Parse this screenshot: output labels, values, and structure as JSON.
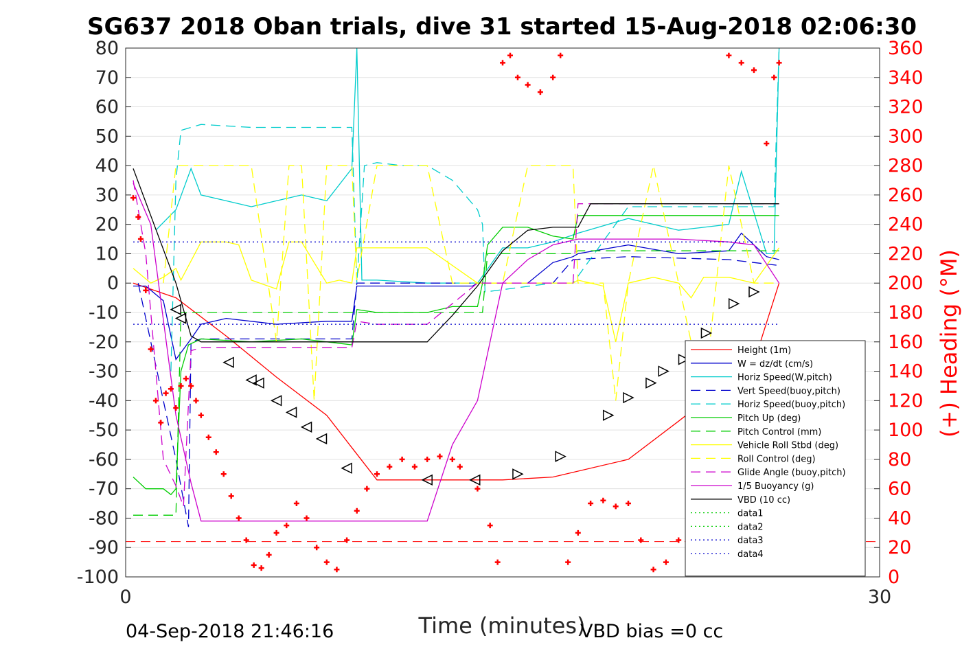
{
  "title": "SG637 2018 Oban trials, dive 31 started 15-Aug-2018 02:06:30",
  "footer": {
    "timestamp": "04-Sep-2018 21:46:16",
    "vbd_bias": "VBD bias =0 cc"
  },
  "chart_data": {
    "type": "line",
    "title": "SG637 2018 Oban trials, dive 31 started 15-Aug-2018 02:06:30",
    "xlabel": "Time (minutes)",
    "ylabel_left": "",
    "ylabel_right": "(+) Heading (°M)",
    "xlim": [
      0,
      30
    ],
    "ylim_left": [
      -100,
      80
    ],
    "ylim_right": [
      0,
      360
    ],
    "xticks": [
      "0",
      "30"
    ],
    "yticks_left": [
      "80",
      "70",
      "60",
      "50",
      "40",
      "30",
      "20",
      "10",
      "0",
      "-10",
      "-20",
      "-30",
      "-40",
      "-50",
      "-60",
      "-70",
      "-80",
      "-90",
      "-100"
    ],
    "yticks_right": [
      "360",
      "340",
      "320",
      "300",
      "280",
      "260",
      "240",
      "220",
      "200",
      "180",
      "160",
      "140",
      "120",
      "100",
      "80",
      "60",
      "40",
      "20",
      "0"
    ],
    "grid": true,
    "legend_position": "bottom-right",
    "series": [
      {
        "name": "Height (1m)",
        "color": "#ff0000",
        "style": "solid",
        "x": [
          0.3,
          2.0,
          4.0,
          6.0,
          8.0,
          9.0,
          10.0,
          13.0,
          15.0,
          17.0,
          20.0,
          22.0,
          25.0,
          26.0
        ],
        "y": [
          0,
          -5,
          -18,
          -32,
          -45,
          -56,
          -67,
          -67,
          -67,
          -66,
          -60,
          -47,
          -27,
          0
        ]
      },
      {
        "name": "W = dz/dt (cm/s)",
        "color": "#0000cc",
        "style": "solid",
        "x": [
          0.3,
          0.8,
          1.5,
          2.0,
          2.6,
          3.0,
          4.0,
          6.0,
          8.0,
          9.0,
          9.2,
          10.0,
          12.0,
          13.8,
          14.0,
          15.0,
          16.0,
          17.0,
          17.8,
          18.0,
          20.0,
          22.0,
          24.0,
          24.5,
          25.5,
          26.0
        ],
        "y": [
          -1,
          -1,
          -6,
          -26,
          -19,
          -14,
          -12,
          -14,
          -13,
          -13,
          -1,
          -1,
          -1,
          -1,
          0,
          0,
          0,
          7,
          9,
          10,
          13,
          10,
          11,
          17,
          9,
          8
        ]
      },
      {
        "name": "Horiz Speed(W,pitch)",
        "color": "#00cccc",
        "style": "solid",
        "x": [
          1.2,
          2.0,
          2.6,
          3.0,
          4.0,
          5.0,
          6.0,
          7.0,
          8.0,
          9.0,
          9.2,
          9.3,
          9.4,
          10.0,
          12.0,
          13.8,
          14.0,
          15.0,
          16.0,
          17.0,
          18.0,
          20.0,
          22.0,
          24.0,
          24.5,
          25.5,
          25.8,
          26.0
        ],
        "y": [
          18,
          25,
          39,
          30,
          28,
          26,
          28,
          30,
          28,
          39,
          80,
          40,
          1,
          1,
          0,
          0,
          0,
          12,
          12,
          14,
          17,
          22,
          18,
          20,
          38,
          10,
          10,
          80
        ]
      },
      {
        "name": "Vert Speed(buoy,pitch)",
        "color": "#0000cc",
        "style": "dashed",
        "x": [
          0.5,
          1.5,
          2.0,
          2.5,
          2.6,
          3.0,
          6.0,
          9.0,
          9.2,
          12.0,
          14.0,
          17.0,
          17.8,
          20.0,
          24.0,
          26.0
        ],
        "y": [
          0,
          -40,
          -60,
          -83,
          -20,
          -19,
          -19,
          -19,
          0,
          0,
          0,
          0,
          8,
          9,
          8,
          6
        ]
      },
      {
        "name": "Horiz Speed(buoy,pitch)",
        "color": "#00cccc",
        "style": "dashed",
        "x": [
          1.8,
          2.0,
          2.2,
          3.0,
          5.0,
          7.0,
          9.0,
          9.2,
          9.5,
          10.0,
          11.0,
          12.0,
          13.0,
          14.0,
          14.2,
          14.3,
          17.0,
          17.8,
          20.0,
          22.0,
          24.0,
          25.0,
          25.8,
          26.0
        ],
        "y": [
          -30,
          35,
          52,
          54,
          53,
          53,
          53,
          0,
          40,
          41,
          40,
          40,
          35,
          25,
          20,
          -3,
          0,
          0,
          26,
          26,
          26,
          26,
          26,
          80
        ]
      },
      {
        "name": "Pitch Up (deg)",
        "color": "#00cc00",
        "style": "solid",
        "x": [
          0.3,
          0.8,
          1.5,
          1.8,
          2.0,
          2.2,
          2.5,
          3.0,
          5.0,
          7.0,
          9.0,
          9.2,
          10.0,
          12.0,
          13.0,
          14.0,
          14.2,
          14.4,
          15.0,
          16.0,
          17.0,
          17.8,
          18.0,
          20.0,
          22.0,
          24.0,
          26.0
        ],
        "y": [
          -66,
          -70,
          -70,
          -72,
          -70,
          -30,
          -21,
          -19,
          -20,
          -19,
          -21,
          -9,
          -10,
          -10,
          -8,
          -8,
          0,
          13,
          19,
          19,
          16,
          15,
          23,
          23,
          23,
          23,
          23
        ]
      },
      {
        "name": "Pitch Control (mm)",
        "color": "#00cc00",
        "style": "dashed",
        "x": [
          0.3,
          1.2,
          2.0,
          2.2,
          3.0,
          9.2,
          9.4,
          12.0,
          14.2,
          14.4,
          17.8,
          18.0,
          26.0
        ],
        "y": [
          -79,
          -79,
          -79,
          -10,
          -10,
          -10,
          -10,
          -10,
          -10,
          10,
          10,
          11,
          11
        ]
      },
      {
        "name": "Vehicle Roll Stbd (deg)",
        "color": "#ffff00",
        "style": "solid",
        "x": [
          0.3,
          1.0,
          1.5,
          2.0,
          2.2,
          3.0,
          4.0,
          4.5,
          5.0,
          6.0,
          6.5,
          7.0,
          8.0,
          8.5,
          9.0,
          9.2,
          10.0,
          12.0,
          14.0,
          15.0,
          17.8,
          18.0,
          19.0,
          19.5,
          20.0,
          21.0,
          22.0,
          22.5,
          23.0,
          24.0,
          25.0,
          26.0
        ],
        "y": [
          5,
          0,
          2,
          5,
          1,
          14,
          14,
          13,
          1,
          -2,
          14,
          14,
          0,
          1,
          0,
          12,
          12,
          12,
          0,
          0,
          0,
          1,
          -1,
          -20,
          0,
          2,
          0,
          -5,
          2,
          2,
          0,
          12
        ]
      },
      {
        "name": "Roll Control (deg)",
        "color": "#ffff00",
        "style": "dashed",
        "x": [
          1.5,
          2.0,
          3.0,
          5.0,
          6.0,
          6.5,
          7.0,
          7.5,
          8.0,
          9.0,
          9.2,
          10.0,
          11.0,
          12.0,
          13.0,
          14.0,
          15.0,
          16.0,
          17.0,
          17.8,
          18.0,
          19.0,
          19.5,
          20.0,
          21.0,
          22.0,
          23.0,
          24.0,
          25.0,
          26.0
        ],
        "y": [
          0,
          40,
          40,
          40,
          -20,
          40,
          40,
          -40,
          40,
          40,
          1,
          40,
          40,
          40,
          0,
          0,
          0,
          40,
          40,
          40,
          0,
          0,
          -40,
          0,
          40,
          0,
          -40,
          40,
          0,
          0
        ]
      },
      {
        "name": "Glide Angle (buoy,pitch)",
        "color": "#cc00cc",
        "style": "dashed",
        "x": [
          0.3,
          0.8,
          1.5,
          2.0,
          2.3,
          2.6,
          3.0,
          6.0,
          9.0,
          9.2,
          10.0,
          12.0,
          14.0,
          15.0,
          17.8,
          18.0,
          20.0,
          22.0,
          24.0,
          26.0
        ],
        "y": [
          35,
          10,
          -60,
          -69,
          -76,
          -23,
          -22,
          -22,
          -22,
          -13,
          -14,
          -14,
          0,
          0,
          0,
          27,
          27,
          27,
          27,
          27
        ]
      },
      {
        "name": "1/5 Buoyancy (g)",
        "color": "#cc00cc",
        "style": "solid",
        "x": [
          0.3,
          1.0,
          2.0,
          2.6,
          3.0,
          6.0,
          9.0,
          12.0,
          13.0,
          14.0,
          15.0,
          16.0,
          17.0,
          18.0,
          22.0,
          24.0,
          25.0,
          26.0
        ],
        "y": [
          34,
          20,
          -45,
          -68,
          -81,
          -81,
          -81,
          -81,
          -55,
          -40,
          0,
          8,
          13,
          15,
          15,
          14,
          13,
          0
        ]
      },
      {
        "name": "VBD (10 cc)",
        "color": "#000000",
        "style": "solid",
        "x": [
          0.3,
          2.0,
          2.6,
          3.0,
          9.0,
          12.0,
          13.0,
          14.0,
          15.0,
          16.0,
          17.0,
          18.0,
          18.5,
          20.0,
          24.0,
          26.0
        ],
        "y": [
          39,
          0,
          -18,
          -20,
          -20,
          -20,
          -11,
          -1,
          11,
          18,
          19,
          19,
          27,
          27,
          27,
          27
        ]
      },
      {
        "name": "data1",
        "color": "#00cc00",
        "style": "dotted",
        "x": [],
        "y": []
      },
      {
        "name": "data2",
        "color": "#00cc00",
        "style": "dotted",
        "x": [],
        "y": []
      },
      {
        "name": "data3",
        "color": "#0000cc",
        "style": "dotted",
        "x": [
          0.3,
          26.0
        ],
        "y": [
          14,
          14
        ]
      },
      {
        "name": "data4",
        "color": "#0000cc",
        "style": "dotted",
        "x": [
          0.3,
          26.0
        ],
        "y": [
          -14,
          -14
        ]
      }
    ],
    "reference_lines": [
      {
        "axis": "left",
        "y": -88,
        "color": "#ff0000",
        "style": "dashed"
      }
    ],
    "heading": {
      "color": "#ff0000",
      "marker": "+",
      "x": [
        0.3,
        0.5,
        0.6,
        0.8,
        1.0,
        1.2,
        1.4,
        1.6,
        1.8,
        2.0,
        2.2,
        2.4,
        2.6,
        2.8,
        3.0,
        3.3,
        3.6,
        3.9,
        4.2,
        4.5,
        4.8,
        5.1,
        5.4,
        5.7,
        6.0,
        6.4,
        6.8,
        7.2,
        7.6,
        8.0,
        8.4,
        8.8,
        9.2,
        9.6,
        10.0,
        10.5,
        11.0,
        11.5,
        12.0,
        12.5,
        13.0,
        13.3,
        14.0,
        14.5,
        14.8,
        15.0,
        15.3,
        15.6,
        16.0,
        16.5,
        17.0,
        17.3,
        17.6,
        18.0,
        18.5,
        19.0,
        19.5,
        20.0,
        20.5,
        21.0,
        21.5,
        22.0,
        22.5,
        23.0,
        23.5,
        24.0,
        24.5,
        25.0,
        25.5,
        25.8,
        26.0
      ],
      "y": [
        258,
        245,
        230,
        195,
        155,
        120,
        105,
        125,
        128,
        115,
        130,
        135,
        130,
        120,
        110,
        95,
        85,
        70,
        55,
        40,
        25,
        8,
        6,
        15,
        30,
        35,
        50,
        40,
        20,
        10,
        5,
        25,
        45,
        60,
        70,
        75,
        80,
        75,
        80,
        82,
        80,
        75,
        60,
        35,
        10,
        350,
        355,
        340,
        335,
        330,
        340,
        355,
        10,
        30,
        50,
        52,
        48,
        50,
        25,
        5,
        10,
        25,
        48,
        45,
        10,
        355,
        350,
        345,
        295,
        340,
        350
      ]
    },
    "markers": {
      "color": "#000000",
      "shape": "triangle",
      "x": [
        2.0,
        2.2,
        4.1,
        5.0,
        5.3,
        6.0,
        6.6,
        7.2,
        7.8,
        8.8,
        12.0,
        13.9,
        15.6,
        17.3,
        19.2,
        20.0,
        20.9,
        21.4,
        22.2,
        23.1,
        24.2,
        25.0
      ],
      "y": [
        -9,
        -12,
        -27,
        -33,
        -34,
        -40,
        -44,
        -49,
        -53,
        -63,
        -67,
        -67,
        -65,
        -59,
        -45,
        -39,
        -34,
        -30,
        -26,
        -17,
        -7,
        -3
      ]
    }
  }
}
